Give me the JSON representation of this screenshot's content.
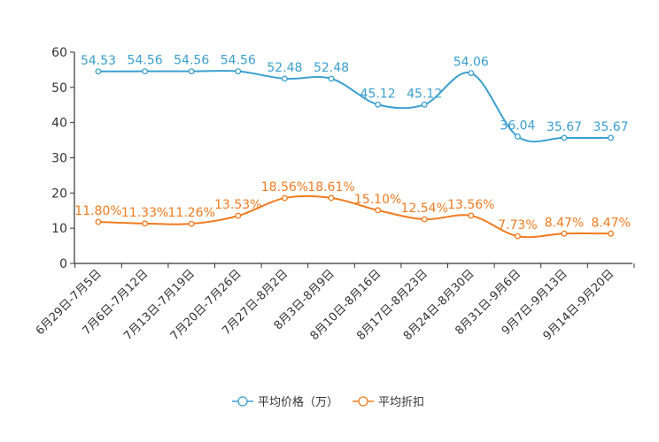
{
  "chart_data": {
    "type": "line",
    "title": "",
    "xlabel": "",
    "ylabel": "",
    "ylim": [
      0,
      60
    ],
    "yticks": [
      0,
      10,
      20,
      30,
      40,
      50,
      60
    ],
    "grid": false,
    "legend_position": "bottom",
    "categories": [
      "6月29日-7月5日",
      "7月6日-7月12日",
      "7月13日-7月19日",
      "7月20日-7月26日",
      "7月27日-8月2日",
      "8月3日-8月9日",
      "8月10日-8月16日",
      "8月17日-8月23日",
      "8月24日-8月30日",
      "8月31日-9月6日",
      "9月7日-9月13日",
      "9月14日-9月20日"
    ],
    "series": [
      {
        "name": "平均价格（万）",
        "color": "#3a9fd0",
        "values": [
          54.53,
          54.56,
          54.56,
          54.56,
          52.48,
          52.48,
          45.12,
          45.12,
          54.06,
          36.04,
          35.67,
          35.67
        ],
        "labels": [
          "54.53",
          "54.56",
          "54.56",
          "54.56",
          "52.48",
          "52.48",
          "45.12",
          "45.12",
          "54.06",
          "36.04",
          "35.67",
          "35.67"
        ]
      },
      {
        "name": "平均折扣",
        "color": "#f07b1f",
        "values": [
          11.8,
          11.33,
          11.26,
          13.53,
          18.56,
          18.61,
          15.1,
          12.54,
          13.56,
          7.73,
          8.47,
          8.47
        ],
        "labels": [
          "11.80%",
          "11.33%",
          "11.26%",
          "13.53%",
          "18.56%",
          "18.61%",
          "15.10%",
          "12.54%",
          "13.56%",
          "7.73%",
          "8.47%",
          "8.47%"
        ]
      }
    ]
  }
}
